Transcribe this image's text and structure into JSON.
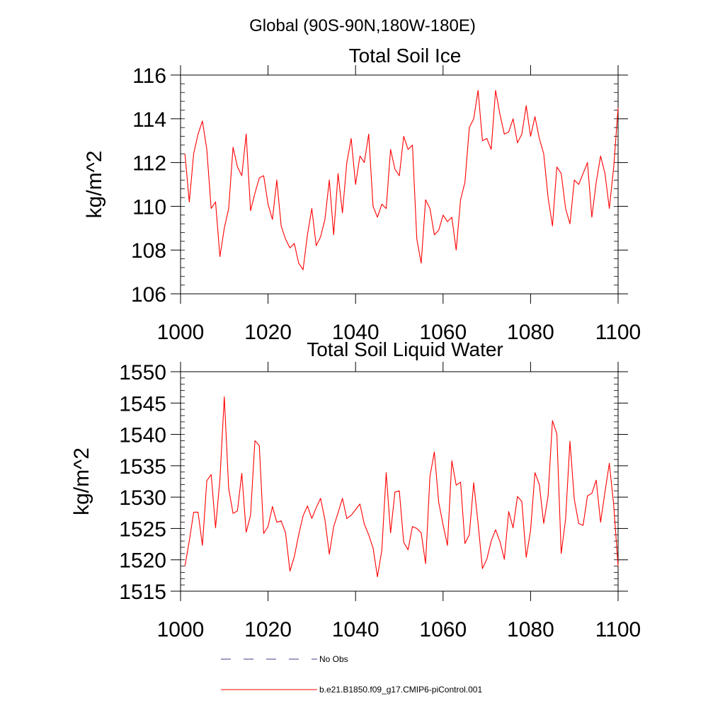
{
  "suptitle": "Global (90S-90N,180W-180E)",
  "colors": {
    "series": "#ff0000",
    "obs": "#3c3c8c",
    "axis": "#000000"
  },
  "legend": [
    {
      "label": "No Obs",
      "style": "dashed",
      "color": "#3c3c8c"
    },
    {
      "label": "b.e21.B1850.f09_g17.CMIP6-piControl.001",
      "style": "solid",
      "color": "#ff0000"
    }
  ],
  "chart_data": [
    {
      "type": "line",
      "title": "Total Soil Ice",
      "xlabel": "",
      "ylabel": "kg/m^2",
      "xlim": [
        1000,
        1100
      ],
      "ylim": [
        106,
        116
      ],
      "xticks": [
        1000,
        1020,
        1040,
        1060,
        1080,
        1100
      ],
      "yticks": [
        106,
        108,
        110,
        112,
        114,
        116
      ],
      "yminor": 0.4,
      "series": [
        {
          "name": "b.e21.B1850.f09_g17.CMIP6-piControl.001",
          "x_start": 1001,
          "x_step": 1,
          "values": [
            112.4,
            110.2,
            112.4,
            113.3,
            113.9,
            112.6,
            109.9,
            110.2,
            107.7,
            109.0,
            109.9,
            112.7,
            111.8,
            111.4,
            113.3,
            109.8,
            110.6,
            111.3,
            111.4,
            110.1,
            109.4,
            111.2,
            109.1,
            108.5,
            108.1,
            108.3,
            107.4,
            107.1,
            108.7,
            109.9,
            108.2,
            108.6,
            109.4,
            111.2,
            108.7,
            111.5,
            109.7,
            112.0,
            113.1,
            111.0,
            112.3,
            112.0,
            113.3,
            110.0,
            109.5,
            110.1,
            109.9,
            112.6,
            111.7,
            111.4,
            113.2,
            112.6,
            112.8,
            108.5,
            107.4,
            110.3,
            109.9,
            108.7,
            108.9,
            109.6,
            109.3,
            109.5,
            108.0,
            110.3,
            111.1,
            113.6,
            114.0,
            115.3,
            113.0,
            113.1,
            112.6,
            115.3,
            114.2,
            113.3,
            113.4,
            114.0,
            112.9,
            113.3,
            114.6,
            113.2,
            114.1,
            113.1,
            112.4,
            110.4,
            109.1,
            111.8,
            111.5,
            109.9,
            109.2,
            111.2,
            111.0,
            111.5,
            112.0,
            109.5,
            111.1,
            112.3,
            111.5,
            109.9,
            111.8,
            114.5
          ]
        }
      ]
    },
    {
      "type": "line",
      "title": "Total Soil Liquid Water",
      "xlabel": "",
      "ylabel": "kg/m^2",
      "xlim": [
        1000,
        1100
      ],
      "ylim": [
        1515,
        1550
      ],
      "xticks": [
        1000,
        1020,
        1040,
        1060,
        1080,
        1100
      ],
      "yticks": [
        1515,
        1520,
        1525,
        1530,
        1535,
        1540,
        1545,
        1550
      ],
      "yminor": 1,
      "series": [
        {
          "name": "b.e21.B1850.f09_g17.CMIP6-piControl.001",
          "x_start": 1001,
          "x_step": 1,
          "values": [
            1519.0,
            1523.0,
            1527.6,
            1527.6,
            1522.3,
            1532.6,
            1533.6,
            1525.1,
            1532.8,
            1546.0,
            1531.4,
            1527.4,
            1527.8,
            1533.8,
            1524.4,
            1527.1,
            1539.0,
            1538.2,
            1524.2,
            1525.3,
            1528.5,
            1526.0,
            1526.2,
            1524.3,
            1518.2,
            1520.5,
            1524.0,
            1527.0,
            1528.6,
            1526.6,
            1528.3,
            1529.8,
            1526.4,
            1520.9,
            1525.3,
            1527.5,
            1529.8,
            1526.6,
            1527.1,
            1528.0,
            1528.9,
            1525.7,
            1524.0,
            1521.9,
            1517.3,
            1521.5,
            1533.9,
            1524.3,
            1530.8,
            1531.0,
            1522.8,
            1521.6,
            1525.3,
            1525.0,
            1524.3,
            1519.4,
            1533.3,
            1537.2,
            1529.2,
            1525.6,
            1522.3,
            1535.8,
            1531.9,
            1532.4,
            1522.6,
            1524.0,
            1532.3,
            1525.8,
            1518.6,
            1520.1,
            1523.0,
            1524.8,
            1522.9,
            1520.1,
            1527.7,
            1525.1,
            1530.1,
            1529.3,
            1520.4,
            1524.7,
            1533.9,
            1532.0,
            1525.8,
            1530.2,
            1542.2,
            1540.1,
            1521.0,
            1526.5,
            1538.9,
            1529.6,
            1525.8,
            1525.5,
            1530.2,
            1530.6,
            1532.7,
            1526.0,
            1530.8,
            1535.4,
            1528.7,
            1519.0
          ]
        }
      ]
    }
  ]
}
